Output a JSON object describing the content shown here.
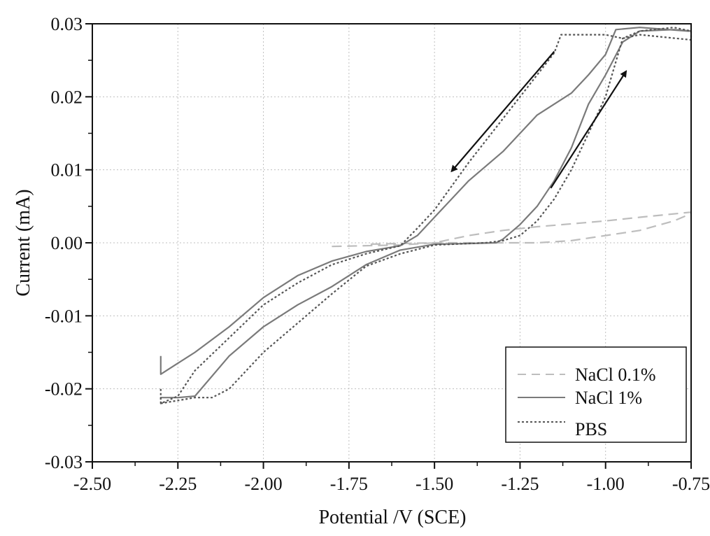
{
  "chart_data": {
    "type": "line",
    "title": "",
    "xlabel": "Potential /V (SCE)",
    "ylabel": "Current (mA)",
    "xlim": [
      -2.5,
      -0.75
    ],
    "ylim": [
      -0.03,
      0.03
    ],
    "x_ticks": [
      -2.5,
      -2.25,
      -2.0,
      -1.75,
      -1.5,
      -1.25,
      -1.0,
      -0.75
    ],
    "x_tick_labels": [
      "-2.50",
      "-2.25",
      "-2.00",
      "-1.75",
      "-1.50",
      "-1.25",
      "-1.00",
      "-0.75"
    ],
    "y_ticks": [
      -0.03,
      -0.02,
      -0.01,
      0.0,
      0.01,
      0.02,
      0.03
    ],
    "y_tick_labels": [
      "-0.03",
      "-0.02",
      "-0.01",
      "0.00",
      "0.01",
      "0.02",
      "0.03"
    ],
    "grid": true,
    "legend_position": "bottom-right",
    "series": [
      {
        "name": "NaCl 0.1%",
        "style": "dashed",
        "color": "#bdbdbd",
        "x": [
          -1.8,
          -1.6,
          -1.5,
          -1.4,
          -1.3,
          -1.2,
          -1.1,
          -1.0,
          -0.9,
          -0.75,
          -0.75,
          -0.8,
          -0.9,
          -1.0,
          -1.1,
          -1.2,
          -1.3,
          -1.4,
          -1.5,
          -1.6,
          -1.7
        ],
        "y": [
          -0.0005,
          -0.0003,
          0.0,
          0.001,
          0.0017,
          0.0022,
          0.0026,
          0.003,
          0.0035,
          0.0042,
          0.004,
          0.003,
          0.0017,
          0.001,
          0.0003,
          0.0,
          0.0,
          0.0,
          0.0,
          -0.0001,
          -0.0002
        ]
      },
      {
        "name": "NaCl 1%",
        "style": "solid",
        "color": "#7a7a7a",
        "x": [
          -2.3,
          -2.3,
          -2.25,
          -2.2,
          -2.1,
          -2.0,
          -1.9,
          -1.8,
          -1.7,
          -1.6,
          -1.55,
          -1.5,
          -1.4,
          -1.3,
          -1.2,
          -1.1,
          -1.05,
          -1.0,
          -0.97,
          -0.9,
          -0.76,
          -0.75,
          -0.8,
          -0.9,
          -0.95,
          -1.0,
          -1.05,
          -1.1,
          -1.15,
          -1.2,
          -1.25,
          -1.3,
          -1.32,
          -1.4,
          -1.5,
          -1.6,
          -1.7,
          -1.8,
          -1.9,
          -2.0,
          -2.1,
          -2.2,
          -2.25,
          -2.3,
          -2.3
        ],
        "y": [
          -0.0155,
          -0.018,
          -0.0165,
          -0.015,
          -0.0115,
          -0.0075,
          -0.0045,
          -0.0025,
          -0.0012,
          -0.0004,
          0.001,
          0.0035,
          0.0085,
          0.0125,
          0.0175,
          0.0205,
          0.023,
          0.0258,
          0.0292,
          0.0295,
          0.029,
          0.029,
          0.0292,
          0.029,
          0.0275,
          0.023,
          0.019,
          0.013,
          0.0085,
          0.005,
          0.0025,
          0.0005,
          0.0,
          -0.0001,
          -0.0002,
          -0.001,
          -0.003,
          -0.006,
          -0.0085,
          -0.0115,
          -0.0155,
          -0.021,
          -0.0212,
          -0.0212,
          -0.0215
        ]
      },
      {
        "name": "PBS",
        "style": "dotted",
        "color": "#555555",
        "x": [
          -2.3,
          -2.3,
          -2.25,
          -2.2,
          -2.1,
          -2.0,
          -1.9,
          -1.8,
          -1.7,
          -1.6,
          -1.55,
          -1.5,
          -1.4,
          -1.3,
          -1.2,
          -1.15,
          -1.13,
          -1.05,
          -1.0,
          -0.95,
          -0.9,
          -0.75,
          -0.75,
          -0.8,
          -0.9,
          -0.95,
          -1.0,
          -1.05,
          -1.1,
          -1.15,
          -1.2,
          -1.25,
          -1.3,
          -1.35,
          -1.4,
          -1.5,
          -1.6,
          -1.7,
          -1.8,
          -1.9,
          -2.0,
          -2.1,
          -2.15,
          -2.2,
          -2.3
        ],
        "y": [
          -0.02,
          -0.022,
          -0.021,
          -0.0175,
          -0.013,
          -0.0085,
          -0.0055,
          -0.003,
          -0.0015,
          -0.0004,
          0.002,
          0.0045,
          0.011,
          0.017,
          0.023,
          0.026,
          0.0285,
          0.0285,
          0.0285,
          0.028,
          0.0285,
          0.0278,
          0.029,
          0.0295,
          0.029,
          0.028,
          0.02,
          0.015,
          0.01,
          0.006,
          0.003,
          0.001,
          0.0003,
          0.0,
          -0.0001,
          -0.0003,
          -0.0015,
          -0.0032,
          -0.007,
          -0.011,
          -0.015,
          -0.02,
          -0.0212,
          -0.0212,
          -0.022
        ]
      }
    ]
  }
}
